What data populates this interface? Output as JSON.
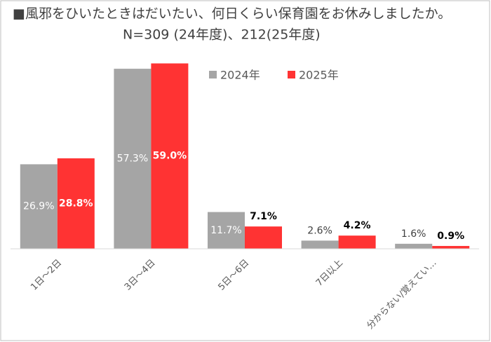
{
  "chart_data": {
    "type": "bar",
    "title": "■風邪をひいたときはだいたい、何日くらい保育園をお休みしましたか。",
    "subtitle": "N=309 (24年度)、212(25年度)",
    "categories": [
      "1日～2日",
      "3日～4日",
      "5日～6日",
      "7日以上",
      "分からない/覚えてい…"
    ],
    "series": [
      {
        "name": "2024年",
        "color": "#a5a5a5",
        "values": [
          26.9,
          57.3,
          11.7,
          2.6,
          1.6
        ],
        "value_labels": [
          "26.9%",
          "57.3%",
          "11.7%",
          "2.6%",
          "1.6%"
        ]
      },
      {
        "name": "2025年",
        "color": "#ff3333",
        "values": [
          28.8,
          59.0,
          7.1,
          4.2,
          0.9
        ],
        "value_labels": [
          "28.8%",
          "59.0%",
          "7.1%",
          "4.2%",
          "0.9%"
        ]
      }
    ],
    "ylim": [
      0,
      60
    ]
  }
}
